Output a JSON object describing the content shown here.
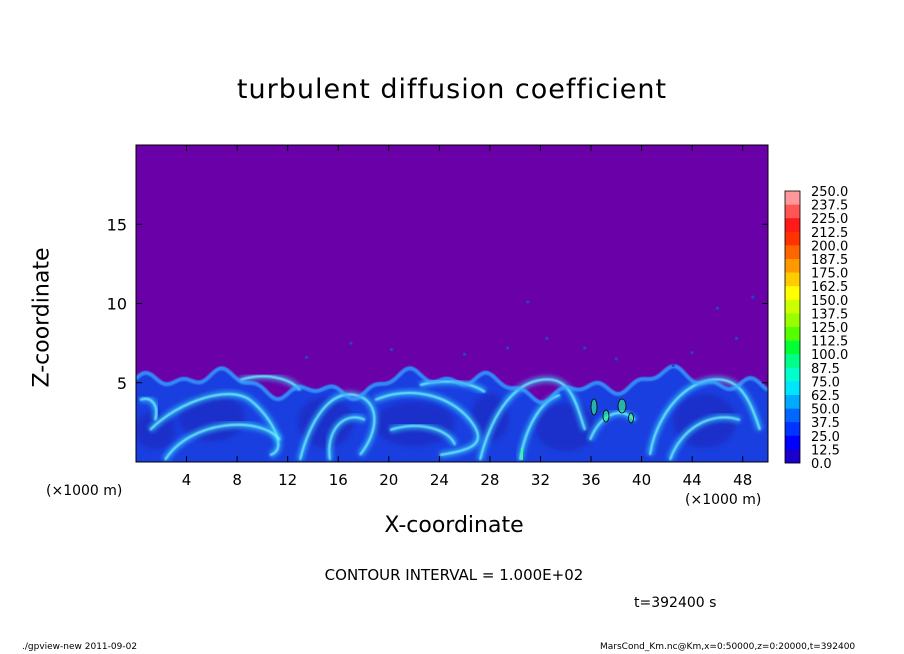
{
  "chart_data": {
    "type": "heatmap",
    "title": "turbulent diffusion coefficient",
    "xlabel": "X-coordinate",
    "ylabel": "Z-coordinate",
    "x_unit_label": "(×1000 m)",
    "x_ticks": [
      4,
      8,
      12,
      16,
      20,
      24,
      28,
      32,
      36,
      40,
      44,
      48
    ],
    "y_ticks": [
      5,
      10,
      15
    ],
    "xlim": [
      0,
      50
    ],
    "ylim": [
      0,
      20
    ],
    "colorbar": {
      "levels": [
        "250.0",
        "237.5",
        "225.0",
        "212.5",
        "200.0",
        "187.5",
        "175.0",
        "162.5",
        "150.0",
        "137.5",
        "125.0",
        "112.5",
        "100.0",
        "87.5",
        "75.0",
        "62.5",
        "50.0",
        "37.5",
        "25.0",
        "12.5",
        "0.0"
      ],
      "colors": [
        "#ff9999",
        "#ff5555",
        "#ff1a1a",
        "#ff3300",
        "#ff6600",
        "#ff9900",
        "#ffcc00",
        "#ffff00",
        "#ccff00",
        "#99ff00",
        "#55ff00",
        "#00ff33",
        "#00ff88",
        "#00ffcc",
        "#00e5ff",
        "#00aaff",
        "#0066ff",
        "#0033ff",
        "#0000ff",
        "#1a00cc",
        "#6600aa"
      ]
    },
    "field_summary": "boundary layer of convective plumes below ~6 km; values 0–100 with a few contours above 100 near x=36–39"
  },
  "annotations": {
    "contour_interval": "CONTOUR INTERVAL = 1.000E+02",
    "time": "t=392400 s",
    "footer_left": "./gpview-new   2011-09-02",
    "footer_right": "MarsCond_Km.nc@Km,x=0:50000,z=0:20000,t=392400"
  },
  "colors": {
    "background_field": "#6a00a8",
    "plume_base": "#1a3fe0",
    "plume_highlight": "#33ddff"
  }
}
